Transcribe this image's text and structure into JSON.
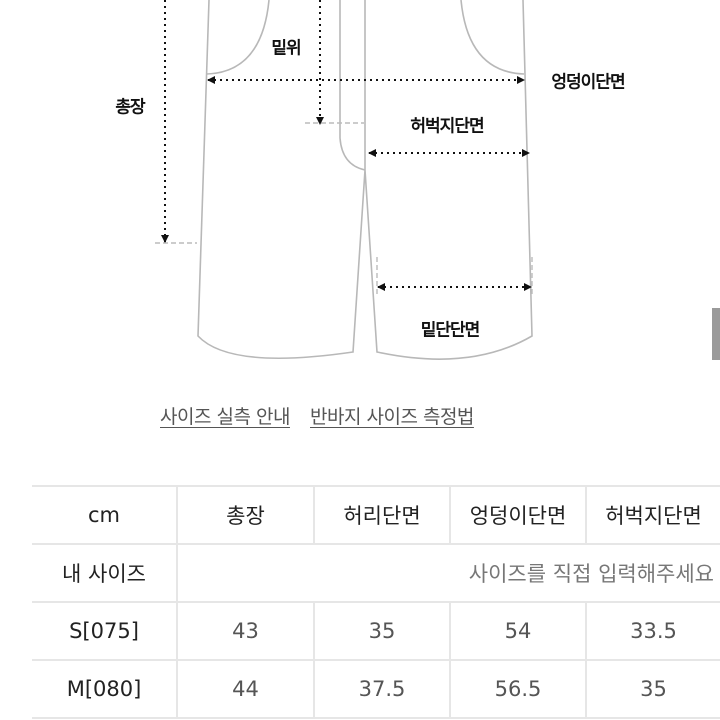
{
  "diagram": {
    "labels": {
      "rise": "밑위",
      "hip": "엉덩이단면",
      "length": "총장",
      "thigh": "허벅지단면",
      "hem": "밑단단면"
    }
  },
  "links": [
    "사이즈 실측 안내",
    "반바지 사이즈 측정법"
  ],
  "table": {
    "headers": [
      "cm",
      "총장",
      "허리단면",
      "엉덩이단면",
      "허벅지단면"
    ],
    "my_size": {
      "label": "내 사이즈",
      "placeholder": "사이즈를 직접 입력해주세요"
    },
    "rows": [
      [
        "S[075]",
        "43",
        "35",
        "54",
        "33.5"
      ],
      [
        "M[080]",
        "44",
        "37.5",
        "56.5",
        "35"
      ]
    ]
  }
}
